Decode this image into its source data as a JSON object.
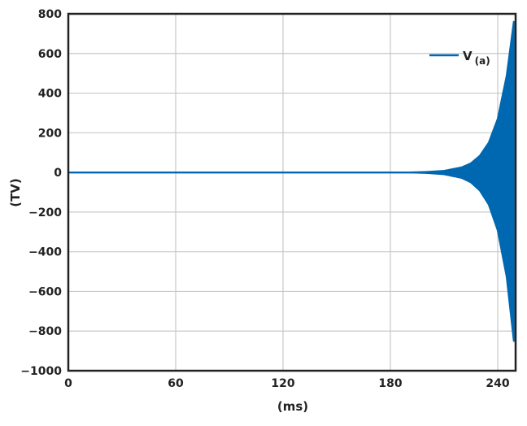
{
  "chart_data": {
    "type": "line",
    "title": "",
    "xlabel": "(ms)",
    "ylabel": "(TV)",
    "xlim": [
      0,
      250
    ],
    "ylim": [
      -1000,
      800
    ],
    "xticks": [
      0,
      60,
      120,
      180,
      240
    ],
    "yticks": [
      800,
      600,
      400,
      200,
      0,
      -200,
      -400,
      -600,
      -800,
      -1000
    ],
    "grid": true,
    "legend": "top-right",
    "series": [
      {
        "name": "V",
        "name_subscript": "(a)",
        "color": "#0067b1",
        "description_kind": "oscillation envelope",
        "t": [
          0,
          190,
          200,
          210,
          220,
          225,
          230,
          235,
          240,
          245,
          249
        ],
        "upper": [
          0,
          0,
          2.5,
          8,
          26,
          46,
          84,
          150,
          270,
          487,
          760
        ],
        "lower": [
          0,
          0,
          -2.7,
          -9,
          -28,
          -50,
          -91,
          -162,
          -292,
          -526,
          -850
        ]
      }
    ]
  }
}
